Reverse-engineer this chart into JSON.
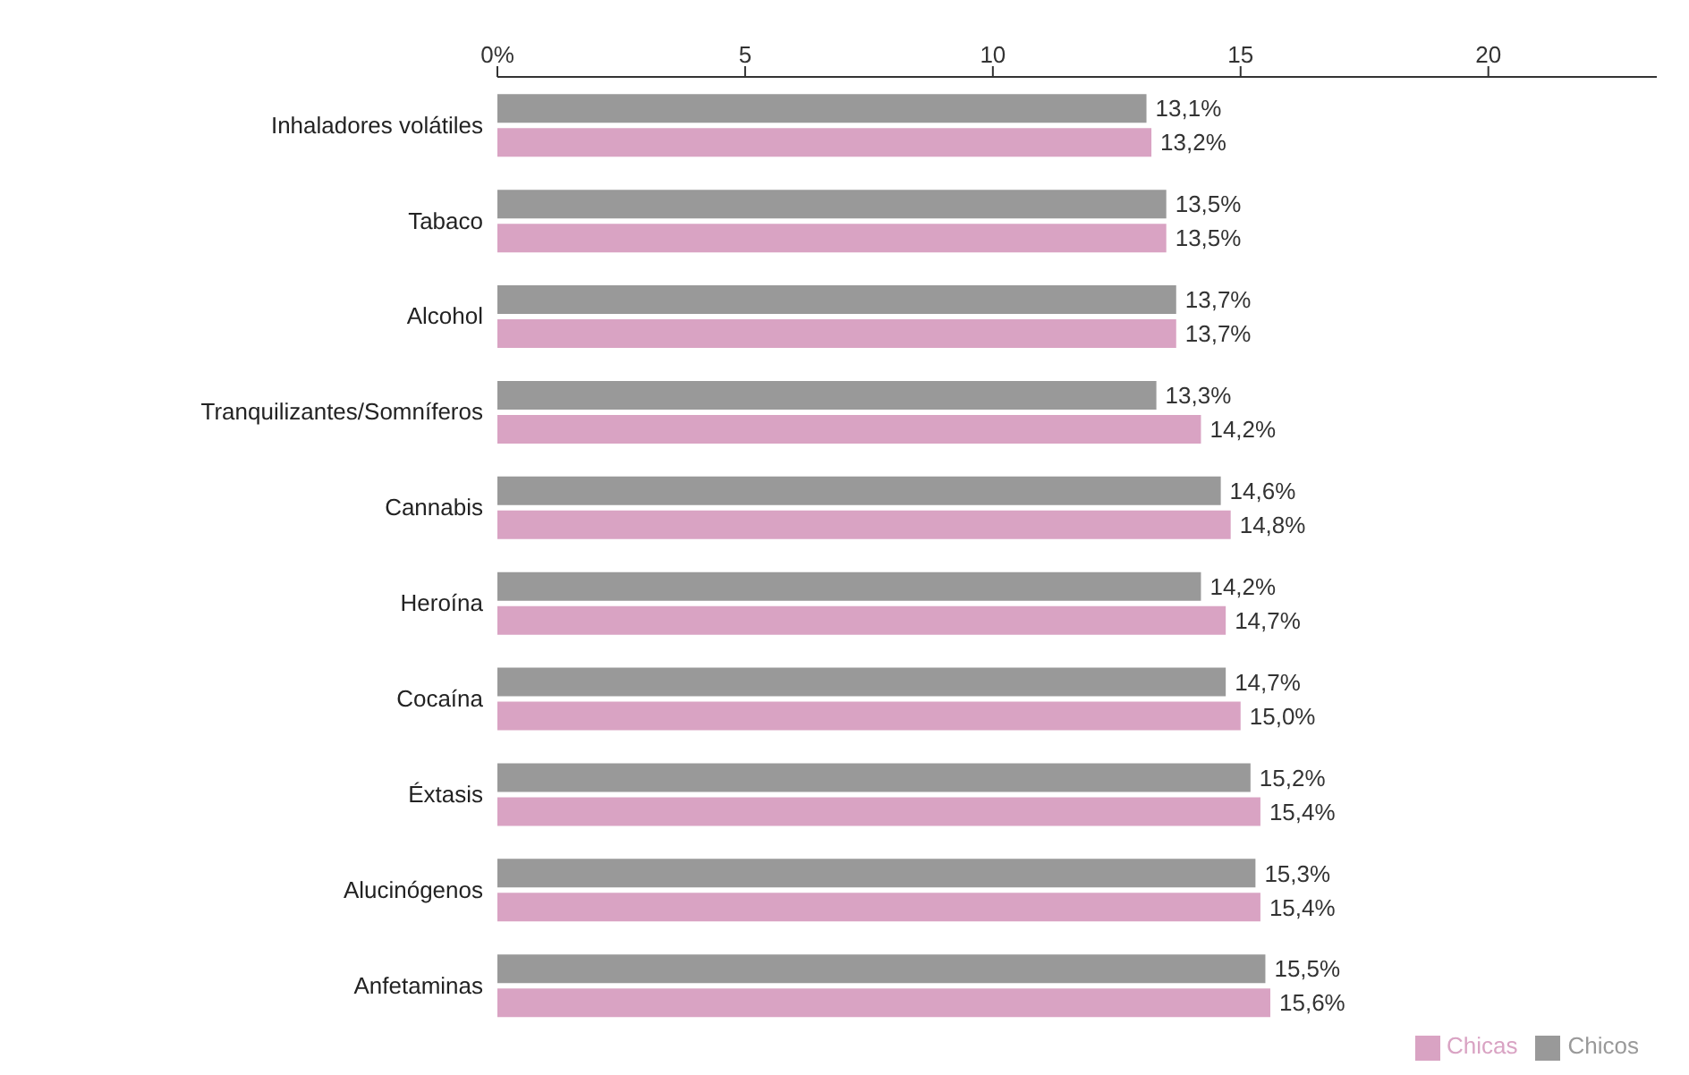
{
  "chart_data": {
    "type": "bar",
    "orientation": "horizontal",
    "categories": [
      "Inhaladores volátiles",
      "Tabaco",
      "Alcohol",
      "Tranquilizantes/Somníferos",
      "Cannabis",
      "Heroína",
      "Cocaína",
      "Éxtasis",
      "Alucinógenos",
      "Anfetaminas"
    ],
    "series": [
      {
        "name": "Chicos",
        "color": "#999999",
        "values": [
          13.1,
          13.5,
          13.7,
          13.3,
          14.6,
          14.2,
          14.7,
          15.2,
          15.3,
          15.5
        ],
        "value_labels": [
          "13,1%",
          "13,5%",
          "13,7%",
          "13,3%",
          "14,6%",
          "14,2%",
          "14,7%",
          "15,2%",
          "15,3%",
          "15,5%"
        ]
      },
      {
        "name": "Chicas",
        "color": "#d9a3c3",
        "values": [
          13.2,
          13.5,
          13.7,
          14.2,
          14.8,
          14.7,
          15.0,
          15.4,
          15.4,
          15.6
        ],
        "value_labels": [
          "13,2%",
          "13,5%",
          "13,7%",
          "14,2%",
          "14,8%",
          "14,7%",
          "15,0%",
          "15,4%",
          "15,4%",
          "15,6%"
        ]
      }
    ],
    "xlim": [
      0,
      23.4
    ],
    "xticks": [
      {
        "value": 0,
        "label": "0%"
      },
      5,
      10,
      15,
      20
    ],
    "grid": false,
    "legend": "bottom right"
  }
}
